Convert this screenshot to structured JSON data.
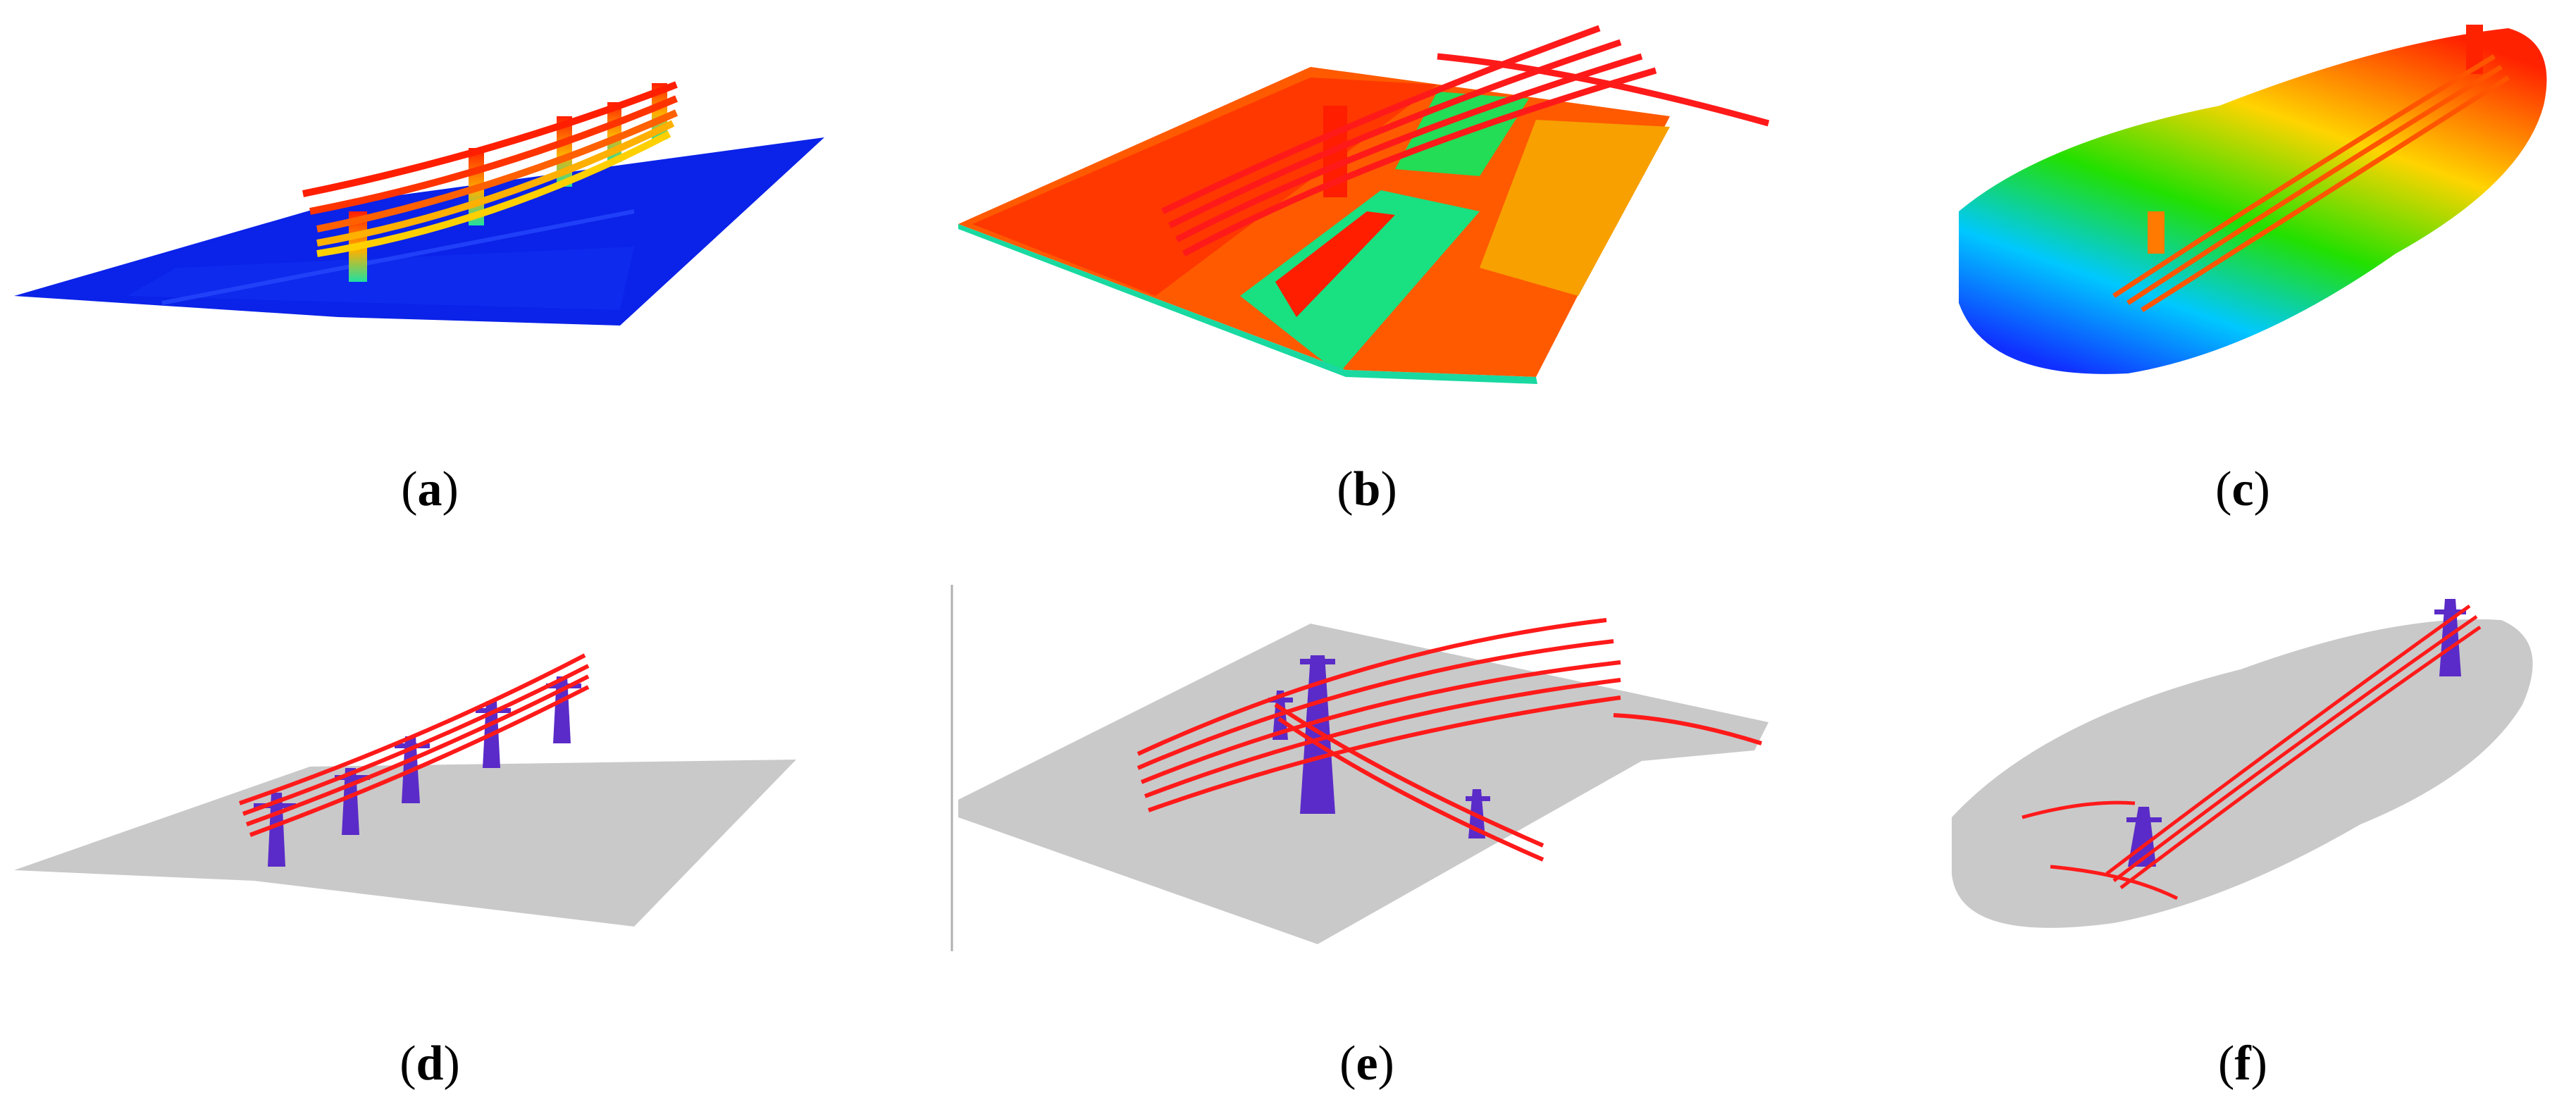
{
  "figure": {
    "panels": [
      {
        "id": "a",
        "label": "a",
        "view": "height-colored point cloud",
        "colors": [
          "#0b22e8",
          "#ff1e00",
          "#ffd000",
          "#20e0a0"
        ]
      },
      {
        "id": "b",
        "label": "b",
        "view": "height-colored point cloud",
        "colors": [
          "#ff5a00",
          "#ff1e00",
          "#19e080",
          "#f7a000"
        ]
      },
      {
        "id": "c",
        "label": "c",
        "view": "height-colored point cloud",
        "colors": [
          "#ff2200",
          "#ffd400",
          "#22e000",
          "#00c8ff",
          "#1030ff"
        ]
      },
      {
        "id": "d",
        "label": "d",
        "view": "classified point cloud",
        "colors": [
          "#c9c9c9",
          "#ff1a1a",
          "#5a2bc8"
        ]
      },
      {
        "id": "e",
        "label": "e",
        "view": "classified point cloud",
        "colors": [
          "#c9c9c9",
          "#ff1a1a",
          "#5a2bc8"
        ]
      },
      {
        "id": "f",
        "label": "f",
        "view": "classified point cloud",
        "colors": [
          "#c9c9c9",
          "#ff1a1a",
          "#5a2bc8"
        ]
      }
    ]
  }
}
